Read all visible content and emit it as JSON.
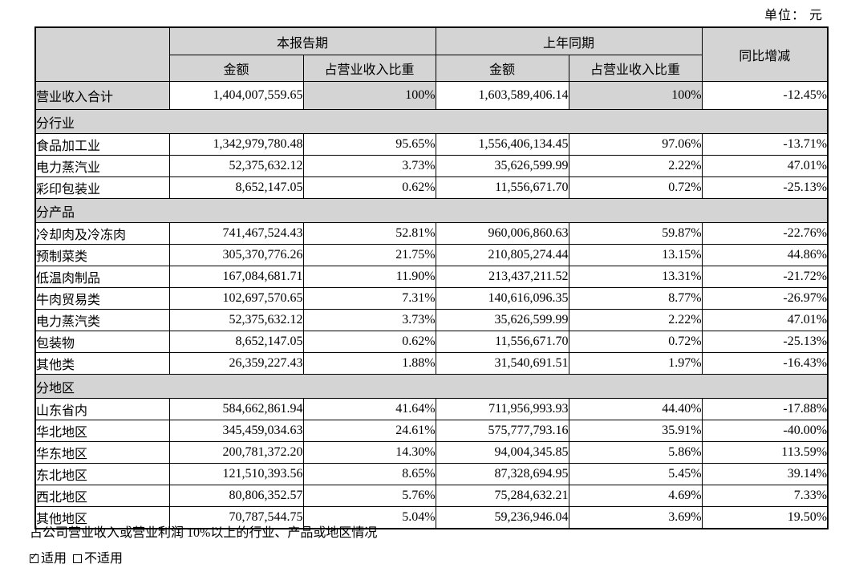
{
  "unit_label": "单位： 元",
  "colors": {
    "shading": "#d4d4d4",
    "border": "#000000",
    "text": "#000000"
  },
  "table": {
    "col_groups": [
      {
        "label": "本报告期"
      },
      {
        "label": "上年同期"
      }
    ],
    "sub_headers": [
      "金额",
      "占营业收入比重",
      "金额",
      "占营业收入比重"
    ],
    "yoy_header": "同比增减",
    "total_row": {
      "label": "营业收入合计",
      "cells": [
        "1,404,007,559.65",
        "100%",
        "1,603,589,406.14",
        "100%",
        "-12.45%"
      ]
    },
    "sections": [
      {
        "title": "分行业",
        "rows": [
          {
            "label": "食品加工业",
            "cells": [
              "1,342,979,780.48",
              "95.65%",
              "1,556,406,134.45",
              "97.06%",
              "-13.71%"
            ]
          },
          {
            "label": "电力蒸汽业",
            "cells": [
              "52,375,632.12",
              "3.73%",
              "35,626,599.99",
              "2.22%",
              "47.01%"
            ]
          },
          {
            "label": "彩印包装业",
            "cells": [
              "8,652,147.05",
              "0.62%",
              "11,556,671.70",
              "0.72%",
              "-25.13%"
            ]
          }
        ]
      },
      {
        "title": "分产品",
        "rows": [
          {
            "label": "冷却肉及冷冻肉",
            "cells": [
              "741,467,524.43",
              "52.81%",
              "960,006,860.63",
              "59.87%",
              "-22.76%"
            ]
          },
          {
            "label": "预制菜类",
            "cells": [
              "305,370,776.26",
              "21.75%",
              "210,805,274.44",
              "13.15%",
              "44.86%"
            ]
          },
          {
            "label": "低温肉制品",
            "cells": [
              "167,084,681.71",
              "11.90%",
              "213,437,211.52",
              "13.31%",
              "-21.72%"
            ]
          },
          {
            "label": "牛肉贸易类",
            "cells": [
              "102,697,570.65",
              "7.31%",
              "140,616,096.35",
              "8.77%",
              "-26.97%"
            ]
          },
          {
            "label": "电力蒸汽类",
            "cells": [
              "52,375,632.12",
              "3.73%",
              "35,626,599.99",
              "2.22%",
              "47.01%"
            ]
          },
          {
            "label": "包装物",
            "cells": [
              "8,652,147.05",
              "0.62%",
              "11,556,671.70",
              "0.72%",
              "-25.13%"
            ]
          },
          {
            "label": "其他类",
            "cells": [
              "26,359,227.43",
              "1.88%",
              "31,540,691.51",
              "1.97%",
              "-16.43%"
            ]
          }
        ]
      },
      {
        "title": "分地区",
        "rows": [
          {
            "label": "山东省内",
            "cells": [
              "584,662,861.94",
              "41.64%",
              "711,956,993.93",
              "44.40%",
              "-17.88%"
            ]
          },
          {
            "label": "华北地区",
            "cells": [
              "345,459,034.63",
              "24.61%",
              "575,777,793.16",
              "35.91%",
              "-40.00%"
            ]
          },
          {
            "label": "华东地区",
            "cells": [
              "200,781,372.20",
              "14.30%",
              "94,004,345.85",
              "5.86%",
              "113.59%"
            ]
          },
          {
            "label": "东北地区",
            "cells": [
              "121,510,393.56",
              "8.65%",
              "87,328,694.95",
              "5.45%",
              "39.14%"
            ]
          },
          {
            "label": "西北地区",
            "cells": [
              "80,806,352.57",
              "5.76%",
              "75,284,632.21",
              "4.69%",
              "7.33%"
            ]
          },
          {
            "label": "其他地区",
            "cells": [
              "70,787,544.75",
              "5.04%",
              "59,236,946.04",
              "3.69%",
              "19.50%"
            ]
          }
        ]
      }
    ]
  },
  "footer": {
    "note": "占公司营业收入或营业利润 10%以上的行业、产品或地区情况",
    "check_glyph": "✓",
    "applicable": {
      "checked": true,
      "label": "适用"
    },
    "not_applicable": {
      "checked": false,
      "label": "不适用"
    }
  }
}
